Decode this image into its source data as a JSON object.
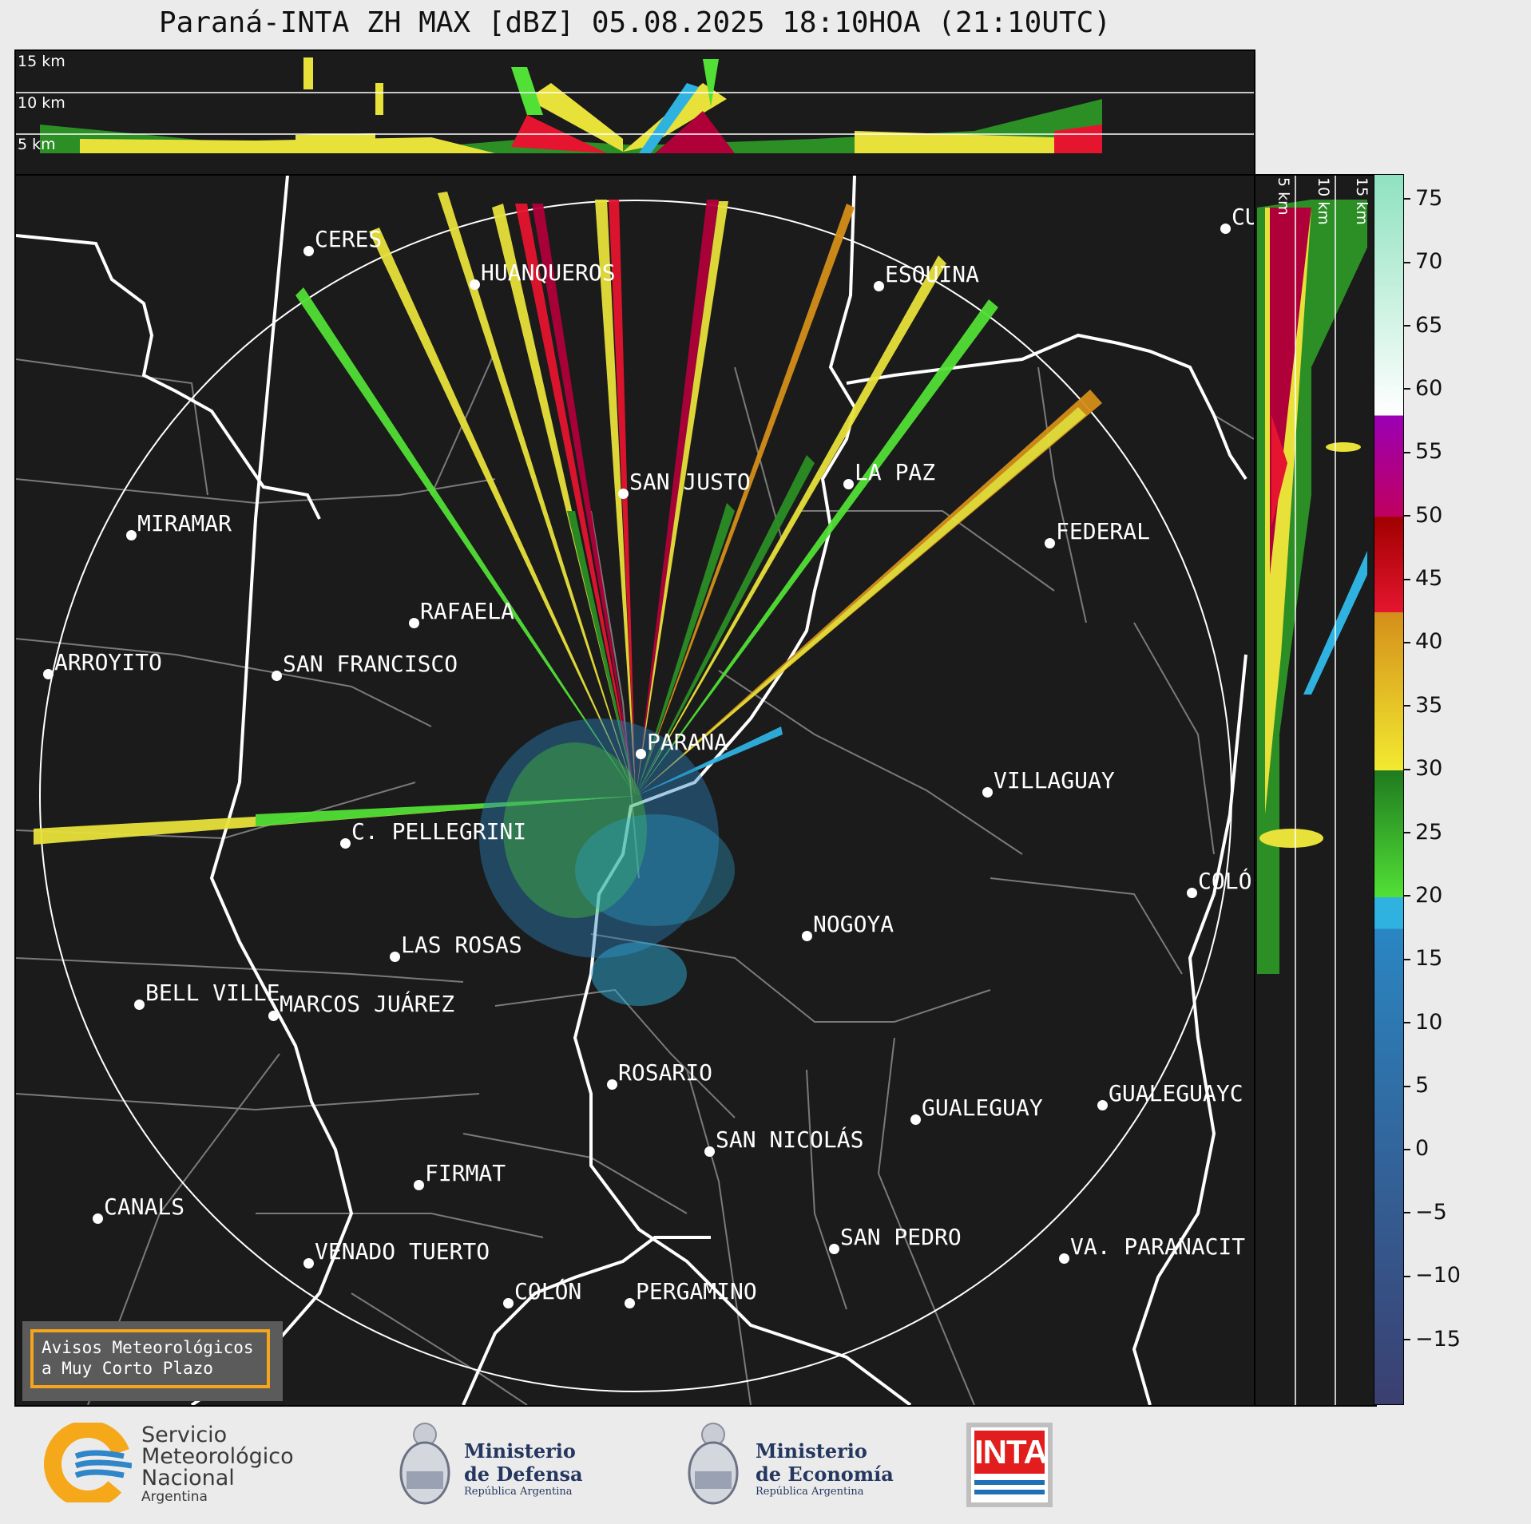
{
  "title": "Paraná-INTA ZH MAX [dBZ] 05.08.2025 18:10HOA (21:10UTC)",
  "top_panel": {
    "height_labels": [
      "15 km",
      "10 km",
      "5 km"
    ]
  },
  "side_panel": {
    "height_labels": [
      "5 km",
      "10 km",
      "15 km"
    ]
  },
  "cities": [
    {
      "name": "CERES"
    },
    {
      "name": "HUANQUEROS"
    },
    {
      "name": "ESQUINA"
    },
    {
      "name": "CU"
    },
    {
      "name": "SAN JUSTO"
    },
    {
      "name": "LA PAZ"
    },
    {
      "name": "MIRAMAR"
    },
    {
      "name": "FEDERAL"
    },
    {
      "name": "RAFAELA"
    },
    {
      "name": "ARROYITO"
    },
    {
      "name": "SAN FRANCISCO"
    },
    {
      "name": "PARANA"
    },
    {
      "name": "VILLAGUAY"
    },
    {
      "name": "C. PELLEGRINI"
    },
    {
      "name": "COLÓ"
    },
    {
      "name": "NOGOYA"
    },
    {
      "name": "LAS ROSAS"
    },
    {
      "name": "BELL VILLE"
    },
    {
      "name": "MARCOS JUÁREZ"
    },
    {
      "name": "ROSARIO"
    },
    {
      "name": "GUALEGUAYC"
    },
    {
      "name": "GUALEGUAY"
    },
    {
      "name": "SAN NICOLÁS"
    },
    {
      "name": "FIRMAT"
    },
    {
      "name": "CANALS"
    },
    {
      "name": "SAN PEDRO"
    },
    {
      "name": "VA. PARANACIT"
    },
    {
      "name": "VENADO TUERTO"
    },
    {
      "name": "COLÓN"
    },
    {
      "name": "PERGAMINO"
    }
  ],
  "colorbar": {
    "ticks": [
      "75",
      "70",
      "65",
      "60",
      "55",
      "50",
      "45",
      "40",
      "35",
      "30",
      "25",
      "20",
      "15",
      "10",
      "5",
      "0",
      "−5",
      "−10",
      "−15"
    ],
    "vmin": -20,
    "vmax": 77,
    "stops": [
      {
        "from": -20,
        "to": 17.5,
        "color_low": "#3b3f70",
        "color_high": "#2a86c2"
      },
      {
        "from": 17.5,
        "to": 20,
        "color": "#2fb2e0"
      },
      {
        "from": 20,
        "to": 30,
        "color_low": "#52e036",
        "color_high": "#1f7a1f"
      },
      {
        "from": 30,
        "to": 42.5,
        "color_low": "#f2ea30",
        "color_high": "#d48f1a"
      },
      {
        "from": 42.5,
        "to": 50,
        "color_low": "#e5152f",
        "color_high": "#a00000"
      },
      {
        "from": 50,
        "to": 58,
        "color_low": "#c0005e",
        "color_high": "#9b00b5"
      },
      {
        "from": 58,
        "to": 77,
        "color_low": "#ffffff",
        "color_high": "#8fe2c0"
      }
    ]
  },
  "avisos": {
    "line1": "Avisos Meteorológicos",
    "line2": "a Muy Corto Plazo"
  },
  "logos": {
    "smn": {
      "line1": "Servicio",
      "line2": "Meteorológico",
      "line3": "Nacional",
      "line4": "Argentina"
    },
    "defensa": {
      "line1": "Ministerio",
      "line2": "de Defensa",
      "line3": "República Argentina"
    },
    "economia": {
      "line1": "Ministerio",
      "line2": "de Economía",
      "line3": "República Argentina"
    },
    "inta": {
      "text": "INTA"
    }
  },
  "colors": {
    "background": "#1b1b1b",
    "border_lines": "#ffffff",
    "dept_lines": "#7a7a7a",
    "accent": "#f3a51b"
  }
}
